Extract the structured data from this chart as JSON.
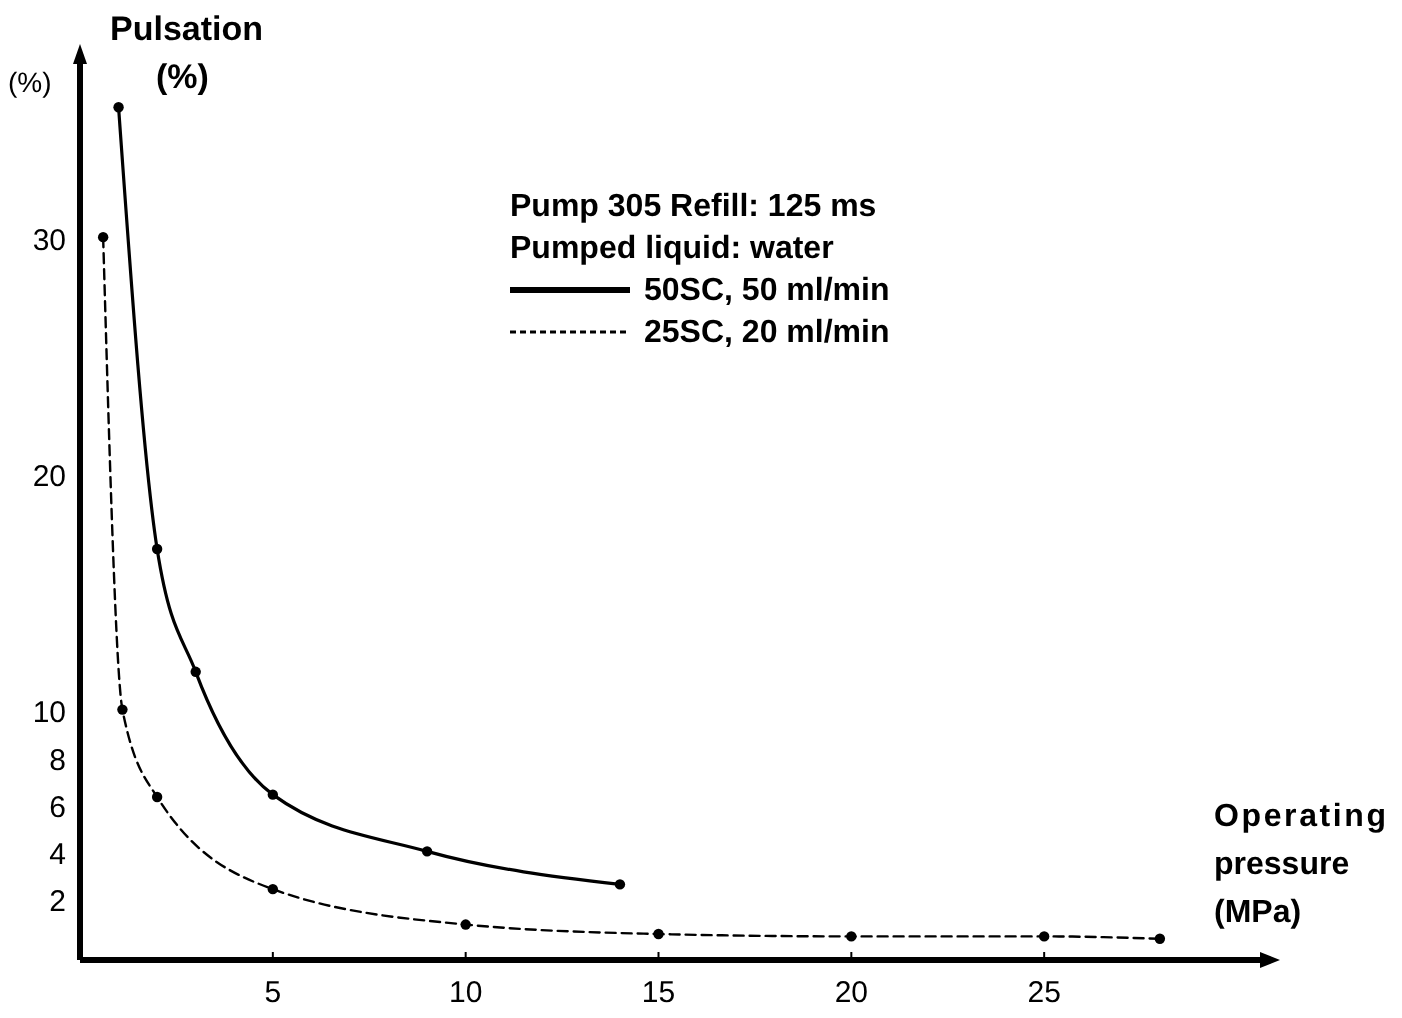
{
  "chart_data": {
    "type": "line",
    "ylabel": "Pulsation\n(%)",
    "xlabel": "Operating\npressure\n(MPa)",
    "legend_title": "Pump 305 Refill: 125 ms\nPumped liquid: water",
    "annotations": [
      "(%)"
    ],
    "xlim": [
      0,
      30.7
    ],
    "ylim": [
      -0.5,
      37.6
    ],
    "xticks": [
      5,
      10,
      15,
      20,
      25
    ],
    "yticks": [
      2,
      4,
      6,
      8,
      10,
      20,
      30
    ],
    "grid": false,
    "legend": "top right",
    "marker": "circle",
    "series": [
      {
        "name": "50SC, 50 ml/min",
        "color": "#000000",
        "line_style": "solid",
        "x": [
          1,
          2,
          3,
          5,
          9,
          14
        ],
        "values": [
          35.6,
          16.9,
          11.7,
          6.5,
          4.1,
          2.7
        ]
      },
      {
        "name": "25SC, 20 ml/min",
        "color": "#000000",
        "line_style": "dashed",
        "x": [
          0.6,
          1.1,
          2,
          5,
          10,
          15,
          20,
          25,
          28
        ],
        "values": [
          30.1,
          10.1,
          6.4,
          2.5,
          1.0,
          0.6,
          0.5,
          0.5,
          0.4
        ]
      }
    ]
  }
}
